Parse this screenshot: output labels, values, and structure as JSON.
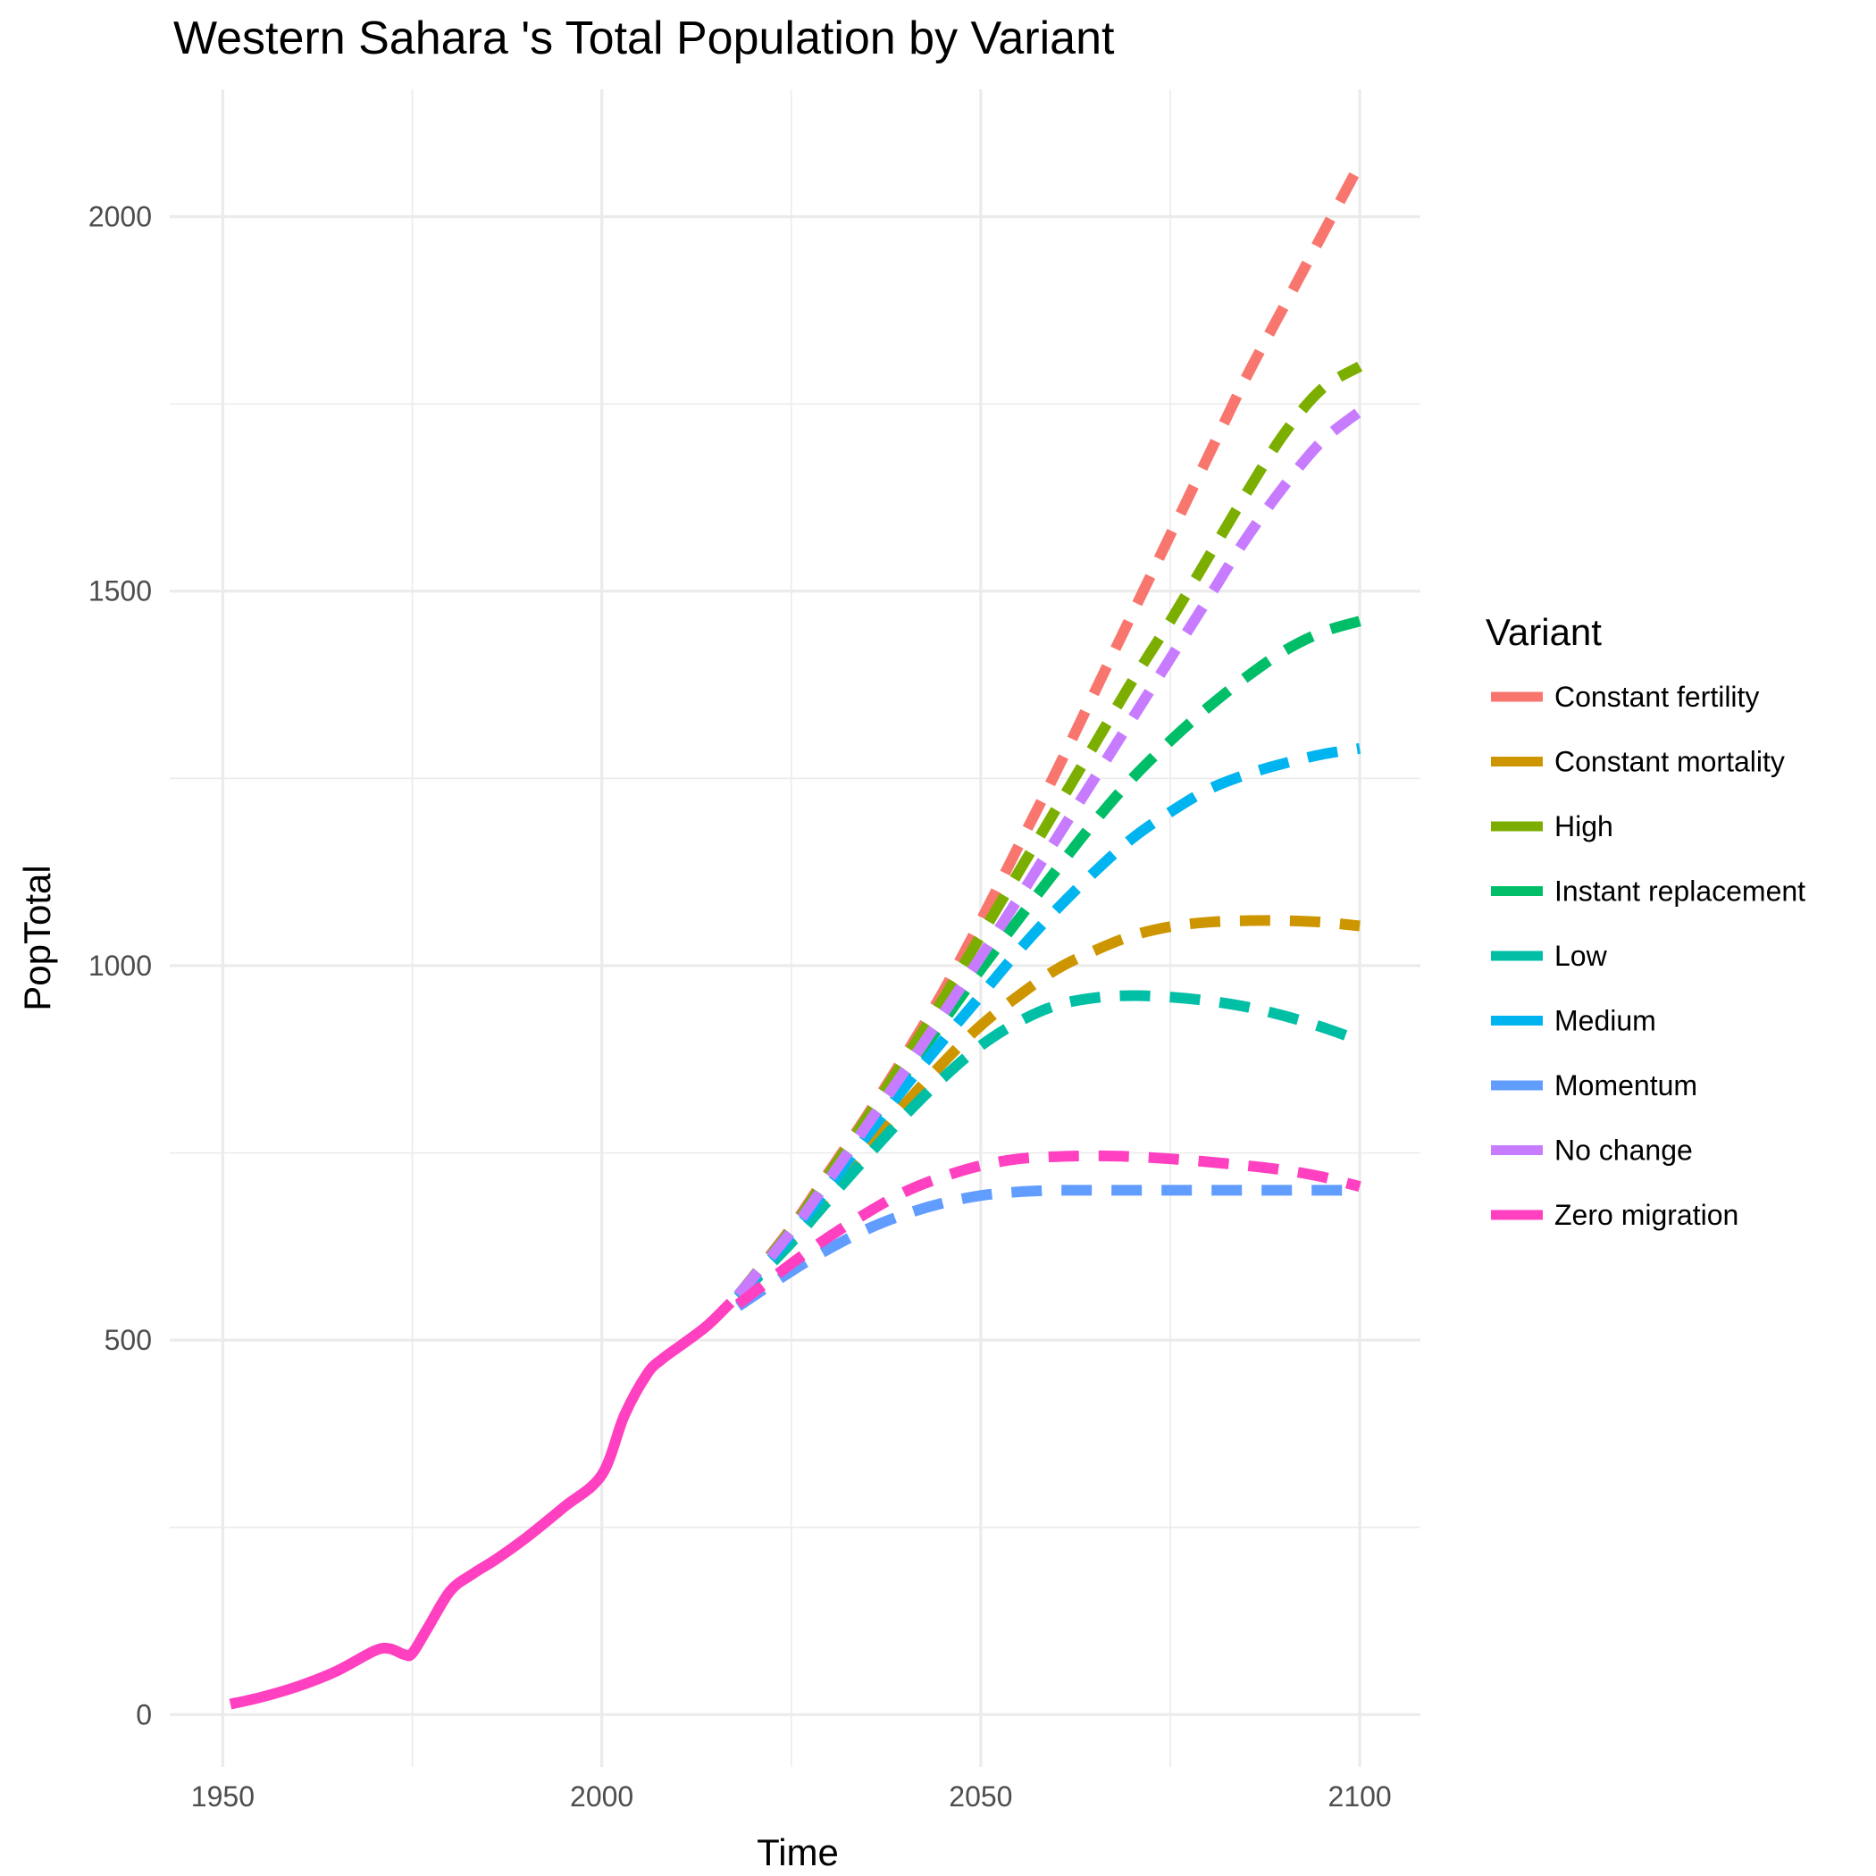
{
  "chart_data": {
    "type": "line",
    "title": "Western Sahara 's Total Population by Variant",
    "xlabel": "Time",
    "ylabel": "PopTotal",
    "xlim": [
      1943,
      2108
    ],
    "ylim": [
      -70,
      2170
    ],
    "x_ticks": [
      1950,
      2000,
      2050,
      2100
    ],
    "x_tick_labels": [
      "1950",
      "2000",
      "2050",
      "2100"
    ],
    "y_ticks": [
      0,
      500,
      1000,
      1500,
      2000
    ],
    "y_tick_labels": [
      "0",
      "500",
      "1000",
      "1500",
      "2000"
    ],
    "grid": true,
    "legend": {
      "title": "Variant",
      "position": "right"
    },
    "historical": {
      "name": "Zero migration",
      "color": "#FF40C0",
      "x": [
        1951,
        1955,
        1960,
        1965,
        1970,
        1972,
        1974,
        1975,
        1977,
        1980,
        1983,
        1986,
        1990,
        1995,
        2000,
        2003,
        2006,
        2008,
        2011,
        2014,
        2017
      ],
      "y": [
        14,
        23,
        38,
        58,
        85,
        88,
        80,
        82,
        115,
        165,
        188,
        207,
        236,
        277,
        320,
        400,
        455,
        475,
        497,
        520,
        550
      ]
    },
    "x": [
      2018,
      2025,
      2030,
      2035,
      2040,
      2045,
      2050,
      2055,
      2060,
      2065,
      2070,
      2075,
      2080,
      2085,
      2090,
      2095,
      2100
    ],
    "series": [
      {
        "name": "Constant fertility",
        "color": "#F8766D",
        "values": [
          560,
          650,
          725,
          800,
          880,
          965,
          1060,
          1160,
          1260,
          1365,
          1470,
          1575,
          1680,
          1785,
          1880,
          1975,
          2070
        ]
      },
      {
        "name": "Constant mortality",
        "color": "#CD9600",
        "values": [
          558,
          635,
          695,
          755,
          815,
          870,
          920,
          960,
          995,
          1020,
          1040,
          1052,
          1058,
          1060,
          1060,
          1058,
          1053
        ]
      },
      {
        "name": "High",
        "color": "#7CAE00",
        "values": [
          560,
          648,
          722,
          797,
          875,
          955,
          1040,
          1125,
          1210,
          1295,
          1380,
          1460,
          1545,
          1630,
          1710,
          1770,
          1800
        ]
      },
      {
        "name": "Instant replacement",
        "color": "#00BE67",
        "values": [
          560,
          645,
          715,
          785,
          855,
          925,
          995,
          1062,
          1128,
          1192,
          1250,
          1300,
          1345,
          1385,
          1420,
          1445,
          1460
        ]
      },
      {
        "name": "Low",
        "color": "#00BFA5",
        "values": [
          557,
          630,
          688,
          745,
          800,
          850,
          893,
          925,
          947,
          957,
          960,
          958,
          953,
          945,
          933,
          918,
          900
        ]
      },
      {
        "name": "Medium",
        "color": "#00B4EF",
        "values": [
          558,
          640,
          706,
          773,
          838,
          900,
          960,
          1020,
          1075,
          1125,
          1170,
          1205,
          1235,
          1255,
          1270,
          1282,
          1290
        ]
      },
      {
        "name": "Momentum",
        "color": "#619CFF",
        "values": [
          545,
          592,
          622,
          648,
          668,
          683,
          693,
          698,
          700,
          700,
          700,
          700,
          700,
          700,
          700,
          700,
          700
        ]
      },
      {
        "name": "No change",
        "color": "#C77CFF",
        "values": [
          560,
          645,
          715,
          787,
          860,
          935,
          1012,
          1090,
          1170,
          1250,
          1330,
          1410,
          1490,
          1570,
          1640,
          1700,
          1740
        ]
      },
      {
        "name": "Zero migration",
        "color": "#FF40C0",
        "values": [
          548,
          602,
          638,
          670,
          698,
          718,
          733,
          742,
          745,
          746,
          745,
          742,
          738,
          733,
          727,
          718,
          705
        ]
      }
    ]
  }
}
